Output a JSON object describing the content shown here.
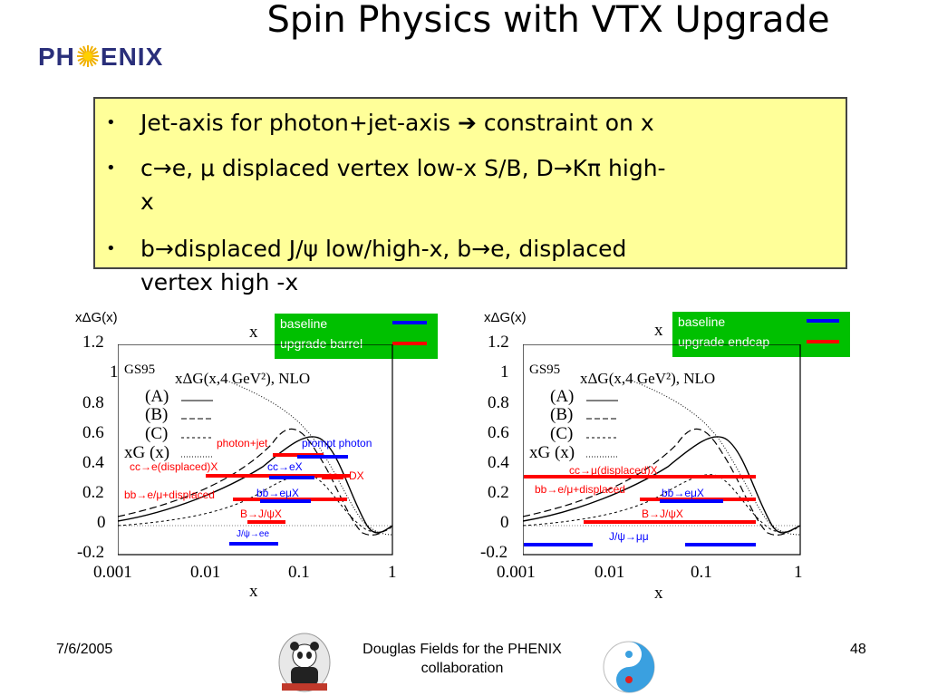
{
  "logo": {
    "text_left": "PH",
    "text_right": "ENIX"
  },
  "title": "Spin Physics with VTX Upgrade",
  "bullets": [
    {
      "line1": "Jet-axis for photon+jet-axis ➔ constraint on x"
    },
    {
      "line1": "c→e, μ displaced vertex low-x S/B, D→Kπ high-",
      "line2": "x"
    },
    {
      "line1": "b→displaced J/ψ low/high-x, b→e, displaced",
      "line2": "vertex high -x"
    }
  ],
  "bullet_symbol": "•",
  "plots": [
    {
      "ylabel": "xΔG(x)",
      "xlabel_top": "x",
      "xlabel_bottom": "x",
      "legend": [
        {
          "label": "baseline",
          "color": "#0000ff"
        },
        {
          "label": "upgrade barrel",
          "color": "#ff0000"
        }
      ],
      "y_ticks": [
        "1.2",
        "1",
        "0.8",
        "0.6",
        "0.4",
        "0.2",
        "0",
        "-0.2"
      ],
      "x_ticks": [
        "0.001",
        "0.01",
        "0.1",
        "1"
      ],
      "annotations": {
        "title": "xΔG(x,4 GeV²), NLO",
        "gs95": "GS95",
        "a": "(A)",
        "b": "(B)",
        "c": "(C)",
        "xg": "xG (x)"
      },
      "labels": [
        {
          "text": "photon+jet",
          "color": "#ff0000"
        },
        {
          "text": "prompt photon",
          "color": "#0000ff"
        },
        {
          "text": "cc→e(displaced)X",
          "color": "#ff0000"
        },
        {
          "text": "cc→eX",
          "color": "#0000ff"
        },
        {
          "text": "cc→DX",
          "color": "#ff0000"
        },
        {
          "text": "bb→e/μ+displaced",
          "color": "#ff0000"
        },
        {
          "text": "bb→eμX",
          "color": "#0000ff"
        },
        {
          "text": "B→J/ψX",
          "color": "#ff0000"
        },
        {
          "text": "J/ψ→ee",
          "color": "#0000ff"
        }
      ]
    },
    {
      "ylabel": "xΔG(x)",
      "xlabel_top": "x",
      "xlabel_bottom": "x",
      "legend": [
        {
          "label": "baseline",
          "color": "#0000ff"
        },
        {
          "label": "upgrade endcap",
          "color": "#ff0000"
        }
      ],
      "y_ticks": [
        "1.2",
        "1",
        "0.8",
        "0.6",
        "0.4",
        "0.2",
        "0",
        "-0.2"
      ],
      "x_ticks": [
        "0.001",
        "0.01",
        "0.1",
        "1"
      ],
      "annotations": {
        "title": "xΔG(x,4 GeV²), NLO",
        "gs95": "GS95",
        "a": "(A)",
        "b": "(B)",
        "c": "(C)",
        "xg": "xG (x)"
      },
      "labels": [
        {
          "text": "cc→μ(displaced)X",
          "color": "#ff0000"
        },
        {
          "text": "bb→e/μ+displaced",
          "color": "#ff0000"
        },
        {
          "text": "bb→eμX",
          "color": "#0000ff"
        },
        {
          "text": "B→J/ψX",
          "color": "#ff0000"
        },
        {
          "text": "J/ψ→μμ",
          "color": "#0000ff"
        }
      ]
    }
  ],
  "footer": {
    "date": "7/6/2005",
    "text_line1": "Douglas Fields for the PHENIX",
    "text_line2": "collaboration",
    "page_number": "48"
  }
}
